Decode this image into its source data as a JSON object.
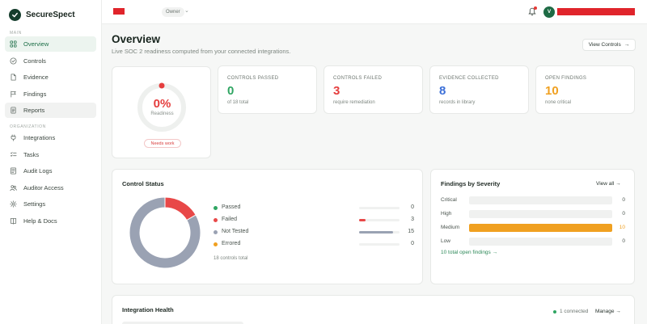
{
  "brand": {
    "name": "SecureSpect"
  },
  "sidebar": {
    "sections": [
      {
        "label": "MAIN",
        "items": [
          {
            "label": "Overview",
            "icon": "grid-icon"
          },
          {
            "label": "Controls",
            "icon": "circle-check-icon"
          },
          {
            "label": "Evidence",
            "icon": "file-icon"
          },
          {
            "label": "Findings",
            "icon": "flag-icon"
          },
          {
            "label": "Reports",
            "icon": "document-icon"
          }
        ]
      },
      {
        "label": "ORGANIZATION",
        "items": [
          {
            "label": "Integrations",
            "icon": "plug-icon"
          },
          {
            "label": "Tasks",
            "icon": "list-icon"
          },
          {
            "label": "Audit Logs",
            "icon": "log-icon"
          },
          {
            "label": "Auditor Access",
            "icon": "users-icon"
          },
          {
            "label": "Settings",
            "icon": "gear-icon"
          },
          {
            "label": "Help & Docs",
            "icon": "book-icon"
          }
        ]
      }
    ]
  },
  "topbar": {
    "role": "Owner",
    "avatar_initial": "V"
  },
  "page": {
    "title": "Overview",
    "subtitle": "Live SOC 2 readiness computed from your connected integrations.",
    "view_controls": "View Controls"
  },
  "readiness": {
    "value": "0%",
    "percent": 0,
    "label": "Readiness",
    "badge": "Needs work"
  },
  "stats": [
    {
      "label": "CONTROLS PASSED",
      "value": "0",
      "sub": "of 18 total",
      "color": "#2fa562"
    },
    {
      "label": "CONTROLS FAILED",
      "value": "3",
      "sub": "require remediation",
      "color": "#e53e3e"
    },
    {
      "label": "EVIDENCE COLLECTED",
      "value": "8",
      "sub": "records in library",
      "color": "#3b6fd8"
    },
    {
      "label": "OPEN FINDINGS",
      "value": "10",
      "sub": "none critical",
      "color": "#f0a020"
    }
  ],
  "control_status": {
    "title": "Control Status",
    "total_label": "18 controls total",
    "items": [
      {
        "name": "Passed",
        "count": 0,
        "color": "#2fa562"
      },
      {
        "name": "Failed",
        "count": 3,
        "color": "#e84848"
      },
      {
        "name": "Not Tested",
        "count": 15,
        "color": "#9aa2b3"
      },
      {
        "name": "Errored",
        "count": 0,
        "color": "#f0a020"
      }
    ]
  },
  "findings": {
    "title": "Findings by Severity",
    "view_all": "View all →",
    "footer_link": "10 total open findings →",
    "items": [
      {
        "name": "Critical",
        "count": 0,
        "fill_color": "#e53e3e",
        "count_color": "#4a544e"
      },
      {
        "name": "High",
        "count": 0,
        "fill_color": "#e57a3e",
        "count_color": "#4a544e"
      },
      {
        "name": "Medium",
        "count": 10,
        "fill_color": "#f0a020",
        "count_color": "#f0a020"
      },
      {
        "name": "Low",
        "count": 0,
        "fill_color": "#3b6fd8",
        "count_color": "#4a544e"
      }
    ]
  },
  "integration": {
    "title": "Integration Health",
    "status": "1 connected",
    "manage": "Manage →"
  }
}
